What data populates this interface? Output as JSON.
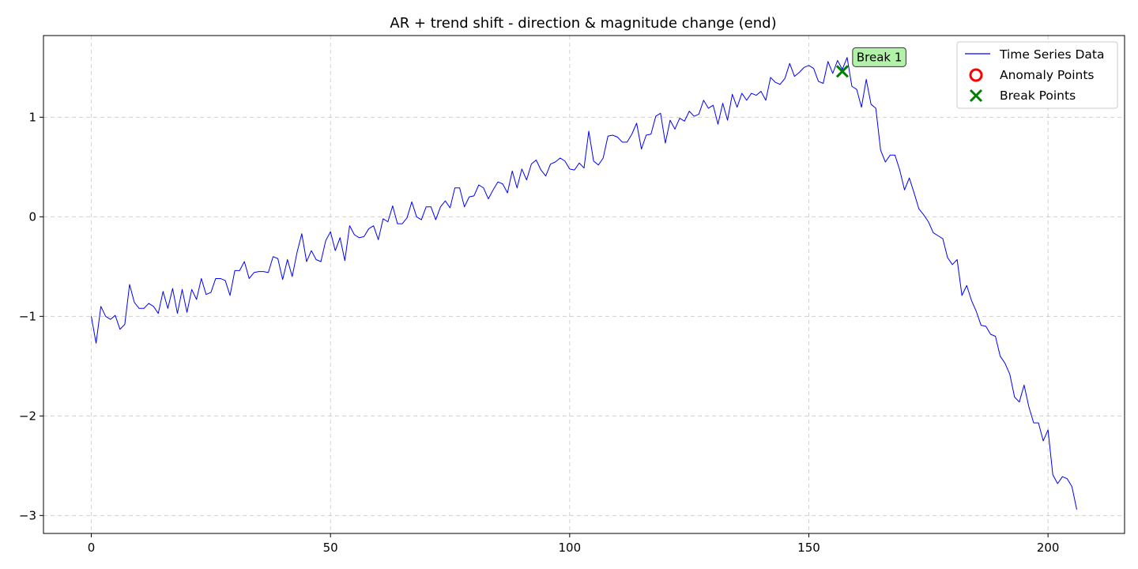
{
  "chart_data": {
    "type": "line",
    "title": "AR + trend shift - direction & magnitude change (end)",
    "xlabel": "",
    "ylabel": "",
    "xlim": [
      -10,
      216
    ],
    "ylim": [
      -3.18,
      1.82
    ],
    "xticks": [
      0,
      50,
      100,
      150,
      200
    ],
    "xtick_labels": [
      "0",
      "50",
      "100",
      "150",
      "200"
    ],
    "yticks": [
      -3,
      -2,
      -1,
      0,
      1
    ],
    "ytick_labels": [
      "−3",
      "−2",
      "−1",
      "0",
      "1"
    ],
    "grid": true,
    "legend_position": "top-right",
    "series": [
      {
        "name": "Time Series Data",
        "color": "#0000ff",
        "x_start": 0,
        "x_step": 1,
        "values": [
          -1.0,
          -1.27,
          -0.9,
          -1.0,
          -1.03,
          -0.99,
          -1.13,
          -1.08,
          -0.68,
          -0.86,
          -0.92,
          -0.92,
          -0.87,
          -0.9,
          -0.97,
          -0.75,
          -0.92,
          -0.72,
          -0.97,
          -0.73,
          -0.96,
          -0.73,
          -0.83,
          -0.62,
          -0.78,
          -0.76,
          -0.62,
          -0.62,
          -0.64,
          -0.79,
          -0.54,
          -0.54,
          -0.45,
          -0.62,
          -0.56,
          -0.55,
          -0.55,
          -0.56,
          -0.4,
          -0.42,
          -0.63,
          -0.43,
          -0.6,
          -0.36,
          -0.17,
          -0.45,
          -0.34,
          -0.43,
          -0.45,
          -0.24,
          -0.15,
          -0.34,
          -0.21,
          -0.44,
          -0.09,
          -0.18,
          -0.21,
          -0.2,
          -0.12,
          -0.09,
          -0.23,
          -0.02,
          -0.05,
          0.11,
          -0.07,
          -0.07,
          -0.01,
          0.15,
          0.0,
          -0.03,
          0.1,
          0.1,
          -0.03,
          0.1,
          0.16,
          0.09,
          0.29,
          0.29,
          0.1,
          0.2,
          0.21,
          0.32,
          0.29,
          0.18,
          0.27,
          0.35,
          0.33,
          0.24,
          0.46,
          0.29,
          0.48,
          0.37,
          0.53,
          0.57,
          0.47,
          0.41,
          0.53,
          0.55,
          0.59,
          0.56,
          0.48,
          0.47,
          0.54,
          0.49,
          0.86,
          0.56,
          0.52,
          0.59,
          0.81,
          0.82,
          0.8,
          0.75,
          0.75,
          0.83,
          0.94,
          0.68,
          0.82,
          0.83,
          1.01,
          1.04,
          0.74,
          0.97,
          0.88,
          0.99,
          0.96,
          1.06,
          1.01,
          1.03,
          1.17,
          1.09,
          1.12,
          0.93,
          1.14,
          0.97,
          1.23,
          1.1,
          1.24,
          1.17,
          1.24,
          1.22,
          1.26,
          1.17,
          1.4,
          1.35,
          1.33,
          1.39,
          1.54,
          1.41,
          1.45,
          1.5,
          1.52,
          1.49,
          1.36,
          1.34,
          1.56,
          1.44,
          1.57,
          1.48,
          1.6,
          1.31,
          1.28,
          1.1,
          1.38,
          1.13,
          1.09,
          0.67,
          0.55,
          0.62,
          0.62,
          0.47,
          0.27,
          0.39,
          0.24,
          0.08,
          0.02,
          -0.05,
          -0.16,
          -0.19,
          -0.22,
          -0.41,
          -0.48,
          -0.43,
          -0.79,
          -0.69,
          -0.84,
          -0.95,
          -1.09,
          -1.1,
          -1.18,
          -1.2,
          -1.4,
          -1.47,
          -1.58,
          -1.81,
          -1.86,
          -1.69,
          -1.91,
          -2.07,
          -2.07,
          -2.25,
          -2.14,
          -2.59,
          -2.68,
          -2.61,
          -2.63,
          -2.71,
          -2.94
        ]
      }
    ],
    "anomaly_points": [],
    "break_points": [
      {
        "x": 157,
        "y": 1.46,
        "label": "Break 1"
      }
    ],
    "legend": {
      "line_label": "Time Series Data",
      "anomaly_label": "Anomaly Points",
      "break_label": "Break Points"
    },
    "colors": {
      "line": "#0000ff",
      "anomaly": "#ff0000",
      "break": "#008000",
      "annotation_bg": "#b2f2a8"
    }
  }
}
